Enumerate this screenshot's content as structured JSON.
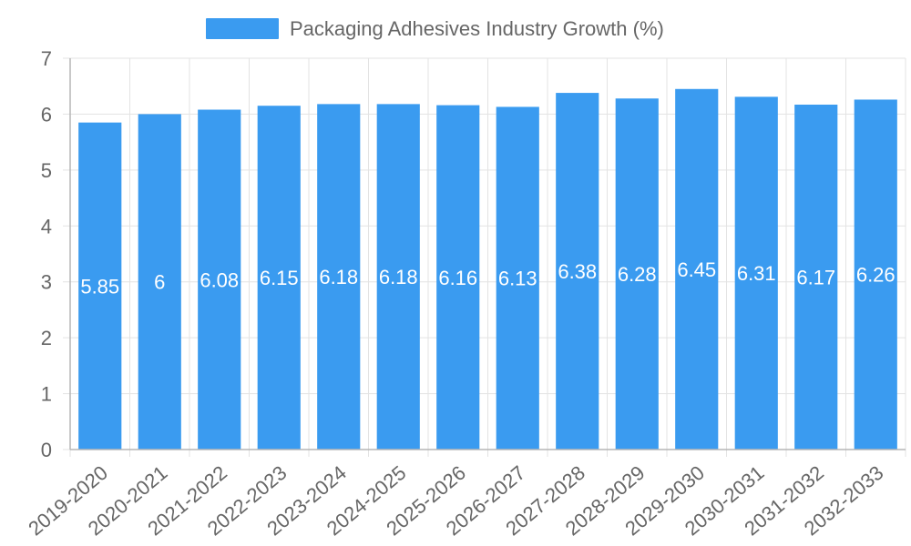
{
  "chart_data": {
    "type": "bar",
    "title": "",
    "xlabel": "",
    "ylabel": "",
    "categories": [
      "2019-2020",
      "2020-2021",
      "2021-2022",
      "2022-2023",
      "2023-2024",
      "2024-2025",
      "2025-2026",
      "2026-2027",
      "2027-2028",
      "2028-2029",
      "2029-2030",
      "2030-2031",
      "2031-2032",
      "2032-2033"
    ],
    "series": [
      {
        "name": "Packaging Adhesives Industry Growth (%)",
        "values": [
          5.85,
          6,
          6.08,
          6.15,
          6.18,
          6.18,
          6.16,
          6.13,
          6.38,
          6.28,
          6.45,
          6.31,
          6.17,
          6.26
        ],
        "value_labels": [
          "5.85",
          "6",
          "6.08",
          "6.15",
          "6.18",
          "6.18",
          "6.16",
          "6.13",
          "6.38",
          "6.28",
          "6.45",
          "6.31",
          "6.17",
          "6.26"
        ],
        "color": "#3a9bf0"
      }
    ],
    "ylim": [
      0,
      7
    ],
    "yticks": [
      "0",
      "1",
      "2",
      "3",
      "4",
      "5",
      "6",
      "7"
    ],
    "grid": true,
    "legend_position": "top-center"
  },
  "colors": {
    "bar": "#3a9bf0",
    "grid": "#e3e3e3",
    "axis": "#b5b5b5",
    "text": "#666666",
    "value_label": "#ffffff"
  }
}
